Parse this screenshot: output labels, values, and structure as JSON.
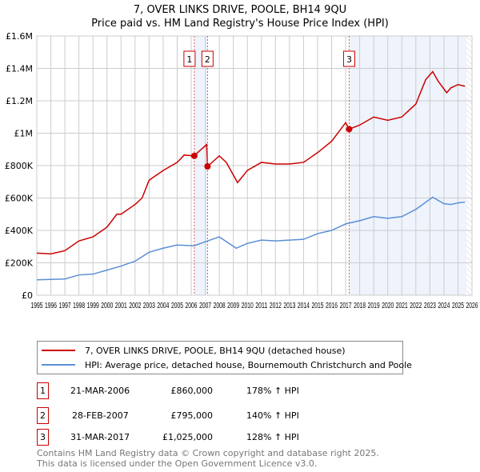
{
  "chart_data": {
    "type": "line",
    "title": "7, OVER LINKS DRIVE, POOLE, BH14 9QU",
    "subtitle": "Price paid vs. HM Land Registry's House Price Index (HPI)",
    "xlim": [
      1995,
      2026
    ],
    "ylim": [
      0,
      1600000
    ],
    "x_ticks": [
      "1995",
      "1996",
      "1997",
      "1998",
      "1999",
      "2000",
      "2001",
      "2002",
      "2003",
      "2004",
      "2005",
      "2006",
      "2007",
      "2008",
      "2009",
      "2010",
      "2011",
      "2012",
      "2013",
      "2014",
      "2015",
      "2016",
      "2017",
      "2018",
      "2019",
      "2020",
      "2021",
      "2022",
      "2023",
      "2024",
      "2025",
      "2026"
    ],
    "y_ticks": [
      {
        "v": 0,
        "l": "£0"
      },
      {
        "v": 200000,
        "l": "£200K"
      },
      {
        "v": 400000,
        "l": "£400K"
      },
      {
        "v": 600000,
        "l": "£600K"
      },
      {
        "v": 800000,
        "l": "£800K"
      },
      {
        "v": 1000000,
        "l": "£1M"
      },
      {
        "v": 1200000,
        "l": "£1.2M"
      },
      {
        "v": 1400000,
        "l": "£1.4M"
      },
      {
        "v": 1600000,
        "l": "£1.6M"
      }
    ],
    "grid": true,
    "series": [
      {
        "name": "7, OVER LINKS DRIVE, POOLE, BH14 9QU (detached house)",
        "color": "#cc0000",
        "points": [
          [
            1995,
            260000
          ],
          [
            1996,
            255000
          ],
          [
            1997,
            275000
          ],
          [
            1998,
            335000
          ],
          [
            1999,
            360000
          ],
          [
            2000,
            420000
          ],
          [
            2000.7,
            500000
          ],
          [
            2001,
            500000
          ],
          [
            2002,
            560000
          ],
          [
            2002.5,
            600000
          ],
          [
            2003,
            710000
          ],
          [
            2004,
            770000
          ],
          [
            2005,
            820000
          ],
          [
            2005.5,
            865000
          ],
          [
            2006.2,
            860000
          ],
          [
            2007.1,
            930000
          ],
          [
            2007.16,
            795000
          ],
          [
            2008,
            860000
          ],
          [
            2008.5,
            820000
          ],
          [
            2009.3,
            695000
          ],
          [
            2010,
            770000
          ],
          [
            2011,
            820000
          ],
          [
            2012,
            810000
          ],
          [
            2013,
            810000
          ],
          [
            2014,
            820000
          ],
          [
            2015,
            880000
          ],
          [
            2016,
            950000
          ],
          [
            2017,
            1065000
          ],
          [
            2017.25,
            1025000
          ],
          [
            2018,
            1050000
          ],
          [
            2019,
            1100000
          ],
          [
            2020,
            1080000
          ],
          [
            2021,
            1100000
          ],
          [
            2022,
            1180000
          ],
          [
            2022.7,
            1330000
          ],
          [
            2023.2,
            1380000
          ],
          [
            2023.6,
            1320000
          ],
          [
            2024.2,
            1250000
          ],
          [
            2024.5,
            1280000
          ],
          [
            2025,
            1300000
          ],
          [
            2025.5,
            1290000
          ]
        ]
      },
      {
        "name": "HPI: Average price, detached house, Bournemouth Christchurch and Poole",
        "color": "#5b8fd4",
        "points": [
          [
            1995,
            95000
          ],
          [
            1997,
            100000
          ],
          [
            1998,
            125000
          ],
          [
            1999,
            130000
          ],
          [
            2000,
            155000
          ],
          [
            2001,
            180000
          ],
          [
            2002,
            210000
          ],
          [
            2003,
            265000
          ],
          [
            2004,
            290000
          ],
          [
            2005,
            310000
          ],
          [
            2006.2,
            305000
          ],
          [
            2007,
            330000
          ],
          [
            2008,
            360000
          ],
          [
            2009.2,
            290000
          ],
          [
            2010,
            320000
          ],
          [
            2011,
            340000
          ],
          [
            2012,
            335000
          ],
          [
            2013,
            340000
          ],
          [
            2014,
            345000
          ],
          [
            2015,
            380000
          ],
          [
            2016,
            400000
          ],
          [
            2017,
            440000
          ],
          [
            2018,
            460000
          ],
          [
            2019,
            485000
          ],
          [
            2020,
            475000
          ],
          [
            2021,
            485000
          ],
          [
            2022,
            530000
          ],
          [
            2023.2,
            605000
          ],
          [
            2024,
            565000
          ],
          [
            2024.5,
            560000
          ],
          [
            2025,
            570000
          ],
          [
            2025.5,
            575000
          ]
        ]
      }
    ],
    "sales": [
      {
        "n": "1",
        "x": 2006.22,
        "price": 860000,
        "date": "21-MAR-2006",
        "price_label": "£860,000",
        "hpi": "178% ↑ HPI"
      },
      {
        "n": "2",
        "x": 2007.16,
        "price": 795000,
        "date": "28-FEB-2007",
        "price_label": "£795,000",
        "hpi": "140% ↑ HPI"
      },
      {
        "n": "3",
        "x": 2017.25,
        "price": 1025000,
        "date": "31-MAR-2017",
        "price_label": "£1,025,000",
        "hpi": "128% ↑ HPI"
      }
    ],
    "shaded_ranges": [
      [
        2006.22,
        2007.16
      ],
      [
        2017.25,
        2025.6
      ]
    ],
    "hatched_from": 2025.6
  },
  "footer": [
    "Contains HM Land Registry data © Crown copyright and database right 2025.",
    "This data is licensed under the Open Government Licence v3.0."
  ]
}
